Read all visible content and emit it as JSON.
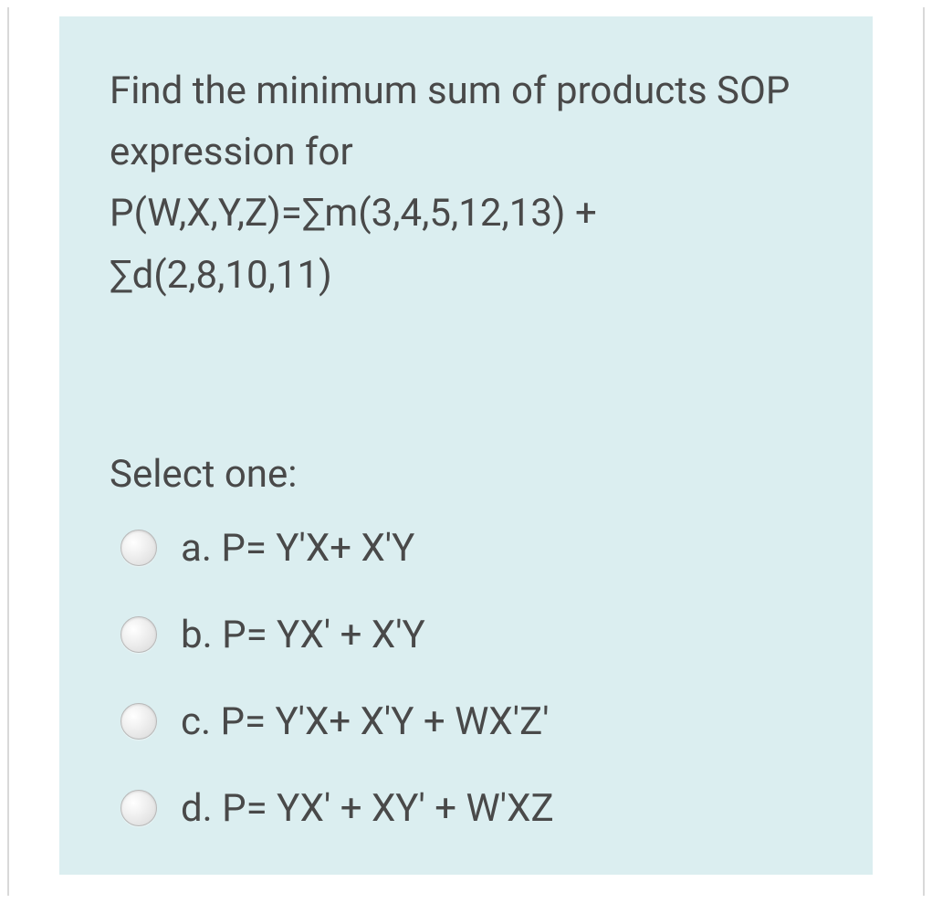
{
  "question": {
    "text": "Find the minimum sum of products SOP expression for P(W,X,Y,Z)=∑m(3,4,5,12,13) + ∑d(2,8,10,11)",
    "select_label": "Select one:",
    "options": [
      {
        "id": "a",
        "label": "a. P= Y'X+ X'Y"
      },
      {
        "id": "b",
        "label": "b. P= YX' + X'Y"
      },
      {
        "id": "c",
        "label": "c. P= Y'X+ X'Y + WX'Z'"
      },
      {
        "id": "d",
        "label": "d. P= YX' + XY' + W'XZ"
      }
    ]
  },
  "styling": {
    "background_color": "#dbeef0",
    "text_color": "#494949",
    "outer_border_color": "#d9d9d9",
    "radio_border_color": "#b8b8b8",
    "body_bg": "#ffffff",
    "font_size_main": 42,
    "line_height": 1.6,
    "question_box_padding": "48px 60px",
    "option_gap": 46,
    "radio_size": 40
  }
}
